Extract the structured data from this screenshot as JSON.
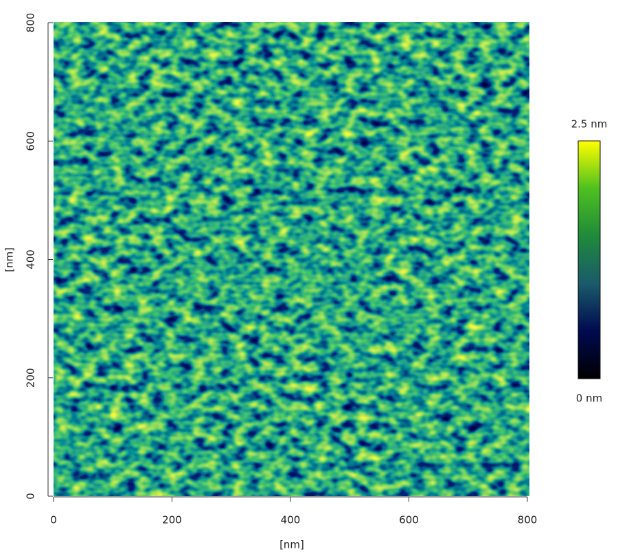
{
  "chart_data": {
    "type": "image",
    "xlabel": "[nm]",
    "ylabel": "[nm]",
    "xlim": [
      0,
      804
    ],
    "ylim": [
      0,
      800
    ],
    "xticks": [
      0,
      200,
      400,
      600,
      800
    ],
    "yticks": [
      0,
      200,
      400,
      600,
      800
    ],
    "colorbar": {
      "clim": [
        0,
        2.5
      ],
      "ticks": [
        {
          "value": 0,
          "label": "0 nm"
        },
        {
          "value": 2.5,
          "label": "2.5 nm"
        }
      ],
      "colors": [
        "#000000",
        "#000a50",
        "#1a5a6a",
        "#1f8a3a",
        "#4fc020",
        "#ffff00"
      ]
    }
  }
}
